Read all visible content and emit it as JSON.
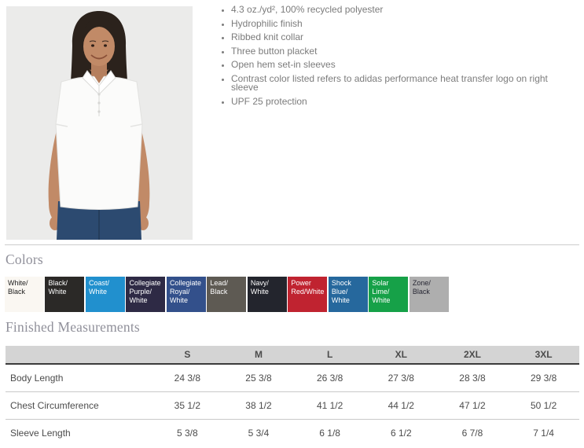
{
  "product": {
    "photo": {
      "description": "Model wearing white short-sleeve polo with navy pants",
      "background": "#ebebea"
    },
    "features": [
      "4.3 oz./yd², 100% recycled polyester",
      "Hydrophilic finish",
      "Ribbed knit collar",
      "Three button placket",
      "Open hem set-in sleeves",
      "Contrast color listed refers to adidas performance heat transfer logo on right sleeve",
      "UPF 25 protection"
    ]
  },
  "colors": {
    "heading": "Colors",
    "swatches": [
      {
        "name": "White/Black",
        "label_lines": [
          "White/",
          "Black"
        ],
        "bg": "#faf7f2",
        "fg": "#1c1c1c",
        "pattern": "none"
      },
      {
        "name": "Black/White",
        "label_lines": [
          "Black/",
          "White"
        ],
        "bg": "#2b2927",
        "fg": "#ffffff",
        "pattern": "none"
      },
      {
        "name": "Coast/White",
        "label_lines": [
          "Coast/",
          "White"
        ],
        "bg": "#2190ce",
        "fg": "#ffffff",
        "pattern": "none"
      },
      {
        "name": "Collegiate Purple/White",
        "label_lines": [
          "Collegiate",
          "Purple/",
          "White"
        ],
        "bg": "#2e2a45",
        "fg": "#ffffff",
        "pattern": "weave"
      },
      {
        "name": "Collegiate Royal/White",
        "label_lines": [
          "Collegiate",
          "Royal/",
          "White"
        ],
        "bg": "#33508b",
        "fg": "#ffffff",
        "pattern": "none"
      },
      {
        "name": "Lead/Black",
        "label_lines": [
          "Lead/",
          "Black"
        ],
        "bg": "#5e5a53",
        "fg": "#ffffff",
        "pattern": "none"
      },
      {
        "name": "Navy/White",
        "label_lines": [
          "Navy/",
          "White"
        ],
        "bg": "#23252d",
        "fg": "#ffffff",
        "pattern": "none"
      },
      {
        "name": "Power Red/White",
        "label_lines": [
          "Power",
          "Red/White"
        ],
        "bg": "#c02330",
        "fg": "#ffffff",
        "pattern": "none"
      },
      {
        "name": "Shock Blue/White",
        "label_lines": [
          "Shock",
          "Blue/",
          "White"
        ],
        "bg": "#26689d",
        "fg": "#ffffff",
        "pattern": "none"
      },
      {
        "name": "Solar Lime/White",
        "label_lines": [
          "Solar",
          "Lime/",
          "White"
        ],
        "bg": "#16a148",
        "fg": "#ffffff",
        "pattern": "none"
      },
      {
        "name": "Zone/Black",
        "label_lines": [
          "Zone/",
          "Black"
        ],
        "bg": "#aeaeae",
        "fg": "#262633",
        "pattern": "hatch"
      }
    ]
  },
  "measurements": {
    "heading": "Finished Measurements",
    "size_columns": [
      "S",
      "M",
      "L",
      "XL",
      "2XL",
      "3XL"
    ],
    "rows": [
      {
        "label": "Body Length",
        "values": [
          "24 3/8",
          "25 3/8",
          "26 3/8",
          "27 3/8",
          "28 3/8",
          "29 3/8"
        ]
      },
      {
        "label": "Chest Circumference",
        "values": [
          "35 1/2",
          "38 1/2",
          "41 1/2",
          "44 1/2",
          "47 1/2",
          "50 1/2"
        ]
      },
      {
        "label": "Sleeve Length",
        "values": [
          "5 3/8",
          "5 3/4",
          "6 1/8",
          "6 1/2",
          "6 7/8",
          "7 1/4"
        ]
      }
    ]
  }
}
